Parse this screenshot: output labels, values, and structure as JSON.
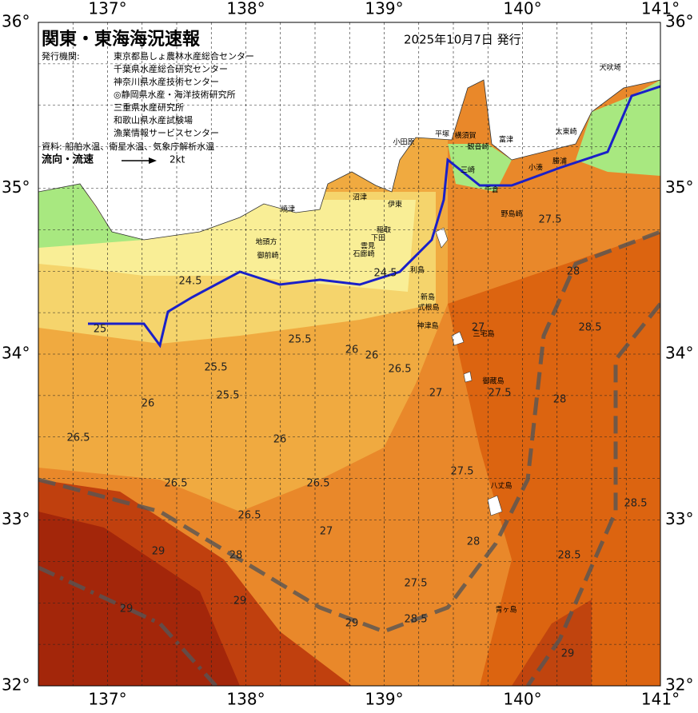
{
  "header": {
    "title": "関東・東海海況速報",
    "date": "2025年10月7日 発行",
    "issuer_label": "発行機関:",
    "issuers": [
      "東京都島しょ農林水産総合センター",
      "千葉県水産総合研究センター",
      "神奈川県水産技術センター",
      "◎静岡県水産・海洋技術研究所",
      "三重県水産研究所",
      "和歌山県水産試験場",
      "漁業情報サービスセンター"
    ],
    "source": "資料: 船舶水温、衛星水温、気象庁解析水温",
    "flow_label": "流向・流速",
    "flow_scale": "2kt"
  },
  "axes": {
    "longitude": [
      "137°",
      "138°",
      "139°",
      "140°",
      "141°"
    ],
    "latitude": [
      "36°",
      "35°",
      "34°",
      "33°",
      "32°"
    ]
  },
  "places": [
    "犬吠埼",
    "太東崎",
    "勝浦",
    "小湊",
    "千倉",
    "平塚",
    "横須賀",
    "富津",
    "観音崎",
    "三崎",
    "小田原",
    "沼津",
    "伊東",
    "稲取",
    "下田",
    "雲見",
    "石廊崎",
    "焼津",
    "地頭方",
    "御前崎",
    "利島",
    "新島",
    "式根島",
    "神津島",
    "三宅島",
    "御蔵島",
    "八丈島",
    "青ヶ島",
    "野島崎"
  ],
  "contour_labels": [
    24.5,
    24.5,
    25,
    25.5,
    25.5,
    25.5,
    26,
    26,
    26,
    26,
    26.5,
    26.5,
    26.5,
    26.5,
    26.5,
    27,
    27,
    27,
    27.5,
    27.5,
    27.5,
    27.5,
    28,
    28,
    28,
    28,
    28.5,
    28.5,
    28.5,
    28.5,
    29,
    29,
    29,
    29,
    29
  ]
}
